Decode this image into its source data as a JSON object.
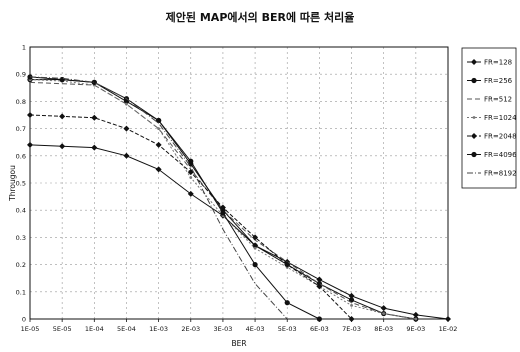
{
  "chart_data": {
    "type": "line",
    "title": "제안된 MAP에서의 BER에 따른 처리율",
    "xlabel": "BER",
    "ylabel": "Througou",
    "categories": [
      "1E-05",
      "5E-05",
      "1E-04",
      "5E-04",
      "1E-03",
      "2E-03",
      "3E-03",
      "4E-03",
      "5E-03",
      "6E-03",
      "7E-03",
      "8E-03",
      "9E-03",
      "1E-02"
    ],
    "ylim": [
      0,
      1
    ],
    "yticks": [
      "0",
      "0.1",
      "0.2",
      "0.3",
      "0.4",
      "0.5",
      "0.6",
      "0.7",
      "0.8",
      "0.9",
      "1"
    ],
    "grid": true,
    "legend_position": "right",
    "series": [
      {
        "name": "FR=128",
        "color": "#111111",
        "dash": "",
        "marker": "diamond",
        "values": [
          0.64,
          0.635,
          0.63,
          0.6,
          0.55,
          0.46,
          0.38,
          0.27,
          0.21,
          0.145,
          0.085,
          0.04,
          0.015,
          0.0
        ]
      },
      {
        "name": "FR=256",
        "color": "#111111",
        "dash": "",
        "marker": "circle",
        "values": [
          0.88,
          0.88,
          0.87,
          0.8,
          0.73,
          0.57,
          0.4,
          0.27,
          0.2,
          0.13,
          0.07,
          0.02,
          0.0,
          null
        ]
      },
      {
        "name": "FR=512",
        "color": "#555555",
        "dash": "5,3",
        "marker": "none",
        "values": [
          0.87,
          0.865,
          0.86,
          0.79,
          0.7,
          0.55,
          0.4,
          0.29,
          0.21,
          0.13,
          0.06,
          0.02,
          0.0,
          null
        ]
      },
      {
        "name": "FR=1024",
        "color": "#777777",
        "dash": "2,2",
        "marker": "dot",
        "values": [
          0.88,
          0.875,
          0.86,
          0.79,
          0.7,
          0.52,
          0.38,
          0.26,
          0.19,
          0.12,
          0.05,
          0.02,
          0.0,
          null
        ]
      },
      {
        "name": "FR=2048",
        "color": "#111111",
        "dash": "4,2",
        "marker": "diamond",
        "values": [
          0.75,
          0.745,
          0.74,
          0.7,
          0.64,
          0.54,
          0.41,
          0.3,
          0.2,
          0.12,
          0.0,
          null,
          null,
          null
        ]
      },
      {
        "name": "FR=4096",
        "color": "#111111",
        "dash": "",
        "marker": "circle",
        "values": [
          0.89,
          0.88,
          0.87,
          0.81,
          0.73,
          0.58,
          0.39,
          0.2,
          0.06,
          0.0,
          null,
          null,
          null,
          null
        ]
      },
      {
        "name": "FR=8192",
        "color": "#444444",
        "dash": "6,2,1,2",
        "marker": "none",
        "values": [
          0.89,
          0.885,
          0.87,
          0.81,
          0.72,
          0.56,
          0.33,
          0.13,
          0.0,
          null,
          null,
          null,
          null,
          null
        ]
      }
    ]
  }
}
